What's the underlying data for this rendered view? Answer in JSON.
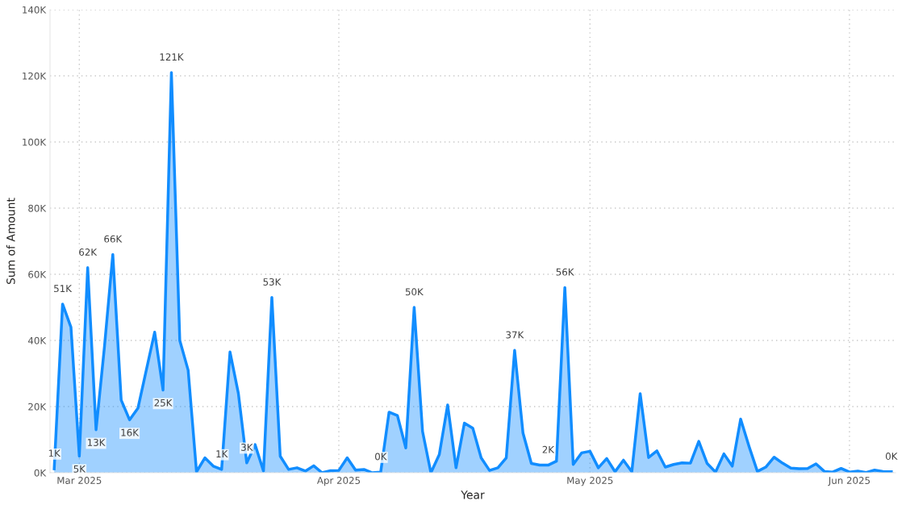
{
  "chart_data": {
    "type": "area",
    "xlabel": "Year",
    "ylabel": "Sum of Amount",
    "x": [
      "2025-02-26",
      "2025-02-27",
      "2025-02-28",
      "2025-03-01",
      "2025-03-02",
      "2025-03-03",
      "2025-03-04",
      "2025-03-05",
      "2025-03-06",
      "2025-03-07",
      "2025-03-08",
      "2025-03-09",
      "2025-03-10",
      "2025-03-11",
      "2025-03-12",
      "2025-03-13",
      "2025-03-14",
      "2025-03-15",
      "2025-03-16",
      "2025-03-17",
      "2025-03-18",
      "2025-03-19",
      "2025-03-20",
      "2025-03-21",
      "2025-03-22",
      "2025-03-23",
      "2025-03-24",
      "2025-03-25",
      "2025-03-26",
      "2025-03-27",
      "2025-03-28",
      "2025-03-29",
      "2025-03-30",
      "2025-03-31",
      "2025-04-01",
      "2025-04-02",
      "2025-04-03",
      "2025-04-04",
      "2025-04-05",
      "2025-04-06",
      "2025-04-07",
      "2025-04-08",
      "2025-04-09",
      "2025-04-10",
      "2025-04-11",
      "2025-04-12",
      "2025-04-13",
      "2025-04-14",
      "2025-04-15",
      "2025-04-16",
      "2025-04-17",
      "2025-04-18",
      "2025-04-19",
      "2025-04-20",
      "2025-04-21",
      "2025-04-22",
      "2025-04-23",
      "2025-04-24",
      "2025-04-25",
      "2025-04-26",
      "2025-04-27",
      "2025-04-28",
      "2025-04-29",
      "2025-04-30",
      "2025-05-01",
      "2025-05-02",
      "2025-05-03",
      "2025-05-04",
      "2025-05-05",
      "2025-05-06",
      "2025-05-07",
      "2025-05-08",
      "2025-05-09",
      "2025-05-10",
      "2025-05-11",
      "2025-05-12",
      "2025-05-13",
      "2025-05-14",
      "2025-05-15",
      "2025-05-16",
      "2025-05-17",
      "2025-05-18",
      "2025-05-19",
      "2025-05-20",
      "2025-05-21",
      "2025-05-22",
      "2025-05-23",
      "2025-05-24",
      "2025-05-25",
      "2025-05-26",
      "2025-05-27",
      "2025-05-28",
      "2025-05-29",
      "2025-05-30",
      "2025-05-31",
      "2025-06-01",
      "2025-06-02",
      "2025-06-03",
      "2025-06-04",
      "2025-06-05",
      "2025-06-06"
    ],
    "series": [
      {
        "color": "#118dff",
        "values": [
          1200,
          51000,
          44000,
          5000,
          62000,
          13000,
          38000,
          66000,
          22000,
          16000,
          19500,
          31000,
          42500,
          25000,
          121000,
          40000,
          31000,
          300,
          4500,
          2000,
          1000,
          36500,
          24000,
          3000,
          8500,
          500,
          53000,
          5000,
          1000,
          1500,
          500,
          2100,
          0,
          600,
          700,
          4500,
          800,
          1000,
          0,
          200,
          18300,
          17300,
          7500,
          50000,
          12500,
          0,
          5500,
          20500,
          1500,
          15000,
          13500,
          4500,
          700,
          1500,
          4500,
          37000,
          12000,
          2800,
          2300,
          2300,
          3500,
          56000,
          2500,
          6000,
          6500,
          1500,
          4300,
          300,
          3800,
          300,
          23900,
          4600,
          6600,
          1700,
          2500,
          3000,
          2900,
          9500,
          2800,
          200,
          5700,
          2000,
          16200,
          8000,
          400,
          1700,
          4700,
          2900,
          1400,
          1200,
          1300,
          2700,
          400,
          200,
          1300,
          200,
          500,
          100,
          800,
          400,
          300
        ],
        "value_labels": [
          "1K",
          "51K",
          null,
          "5K",
          "62K",
          "13K",
          null,
          "66K",
          null,
          "16K",
          null,
          null,
          null,
          "25K",
          "121K",
          null,
          null,
          null,
          null,
          null,
          "1K",
          null,
          null,
          "3K",
          null,
          null,
          "53K",
          null,
          null,
          null,
          null,
          null,
          null,
          null,
          null,
          null,
          null,
          null,
          null,
          "0K",
          null,
          null,
          null,
          "50K",
          null,
          null,
          null,
          null,
          null,
          null,
          null,
          null,
          null,
          null,
          null,
          "37K",
          null,
          null,
          null,
          "2K",
          null,
          "56K",
          null,
          null,
          null,
          null,
          null,
          null,
          null,
          null,
          null,
          null,
          null,
          null,
          null,
          null,
          null,
          null,
          null,
          null,
          null,
          null,
          null,
          null,
          null,
          null,
          null,
          null,
          null,
          null,
          null,
          null,
          null,
          null,
          null,
          null,
          null,
          null,
          null,
          null,
          "0K"
        ]
      }
    ],
    "xlim": [
      "2025-02-25T12:00",
      "2025-06-06T12:00"
    ],
    "xticks": [
      {
        "value": "2025-03-01",
        "label": "Mar 2025"
      },
      {
        "value": "2025-04-01",
        "label": "Apr 2025"
      },
      {
        "value": "2025-05-01",
        "label": "May 2025"
      },
      {
        "value": "2025-06-01",
        "label": "Jun 2025"
      }
    ],
    "ylim": [
      0,
      140000
    ],
    "yticks": [
      {
        "value": 0,
        "label": "0K"
      },
      {
        "value": 20000,
        "label": "20K"
      },
      {
        "value": 40000,
        "label": "40K"
      },
      {
        "value": 60000,
        "label": "60K"
      },
      {
        "value": 80000,
        "label": "80K"
      },
      {
        "value": 100000,
        "label": "100K"
      },
      {
        "value": 120000,
        "label": "120K"
      },
      {
        "value": 140000,
        "label": "140K"
      }
    ],
    "grid": true
  }
}
